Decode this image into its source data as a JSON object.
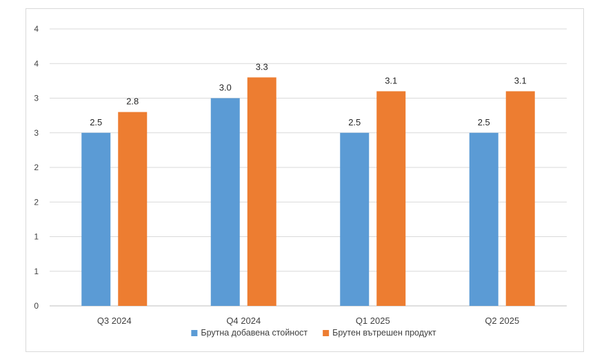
{
  "chart_data": {
    "type": "bar",
    "title": "",
    "xlabel": "",
    "ylabel": "",
    "categories": [
      "Q3 2024",
      "Q4 2024",
      "Q1 2025",
      "Q2 2025"
    ],
    "series": [
      {
        "name": "Брутна добавена стойност",
        "color": "#5b9bd5",
        "values": [
          2.5,
          3.0,
          2.5,
          2.5
        ],
        "labels": [
          "2.5",
          "3.0",
          "2.5",
          "2.5"
        ]
      },
      {
        "name": "Брутен вътрешен продукт",
        "color": "#ed7d31",
        "values": [
          2.8,
          3.3,
          3.1,
          3.1
        ],
        "labels": [
          "2.8",
          "3.3",
          "3.1",
          "3.1"
        ]
      }
    ],
    "ylim": [
      0,
      4
    ],
    "yticks": [
      0,
      0.5,
      1,
      1.5,
      2,
      2.5,
      3,
      3.5,
      4
    ],
    "ytick_labels": [
      "0",
      "1",
      "1",
      "2",
      "2",
      "3",
      "3",
      "4",
      "4"
    ],
    "grid": true,
    "legend_position": "bottom"
  }
}
